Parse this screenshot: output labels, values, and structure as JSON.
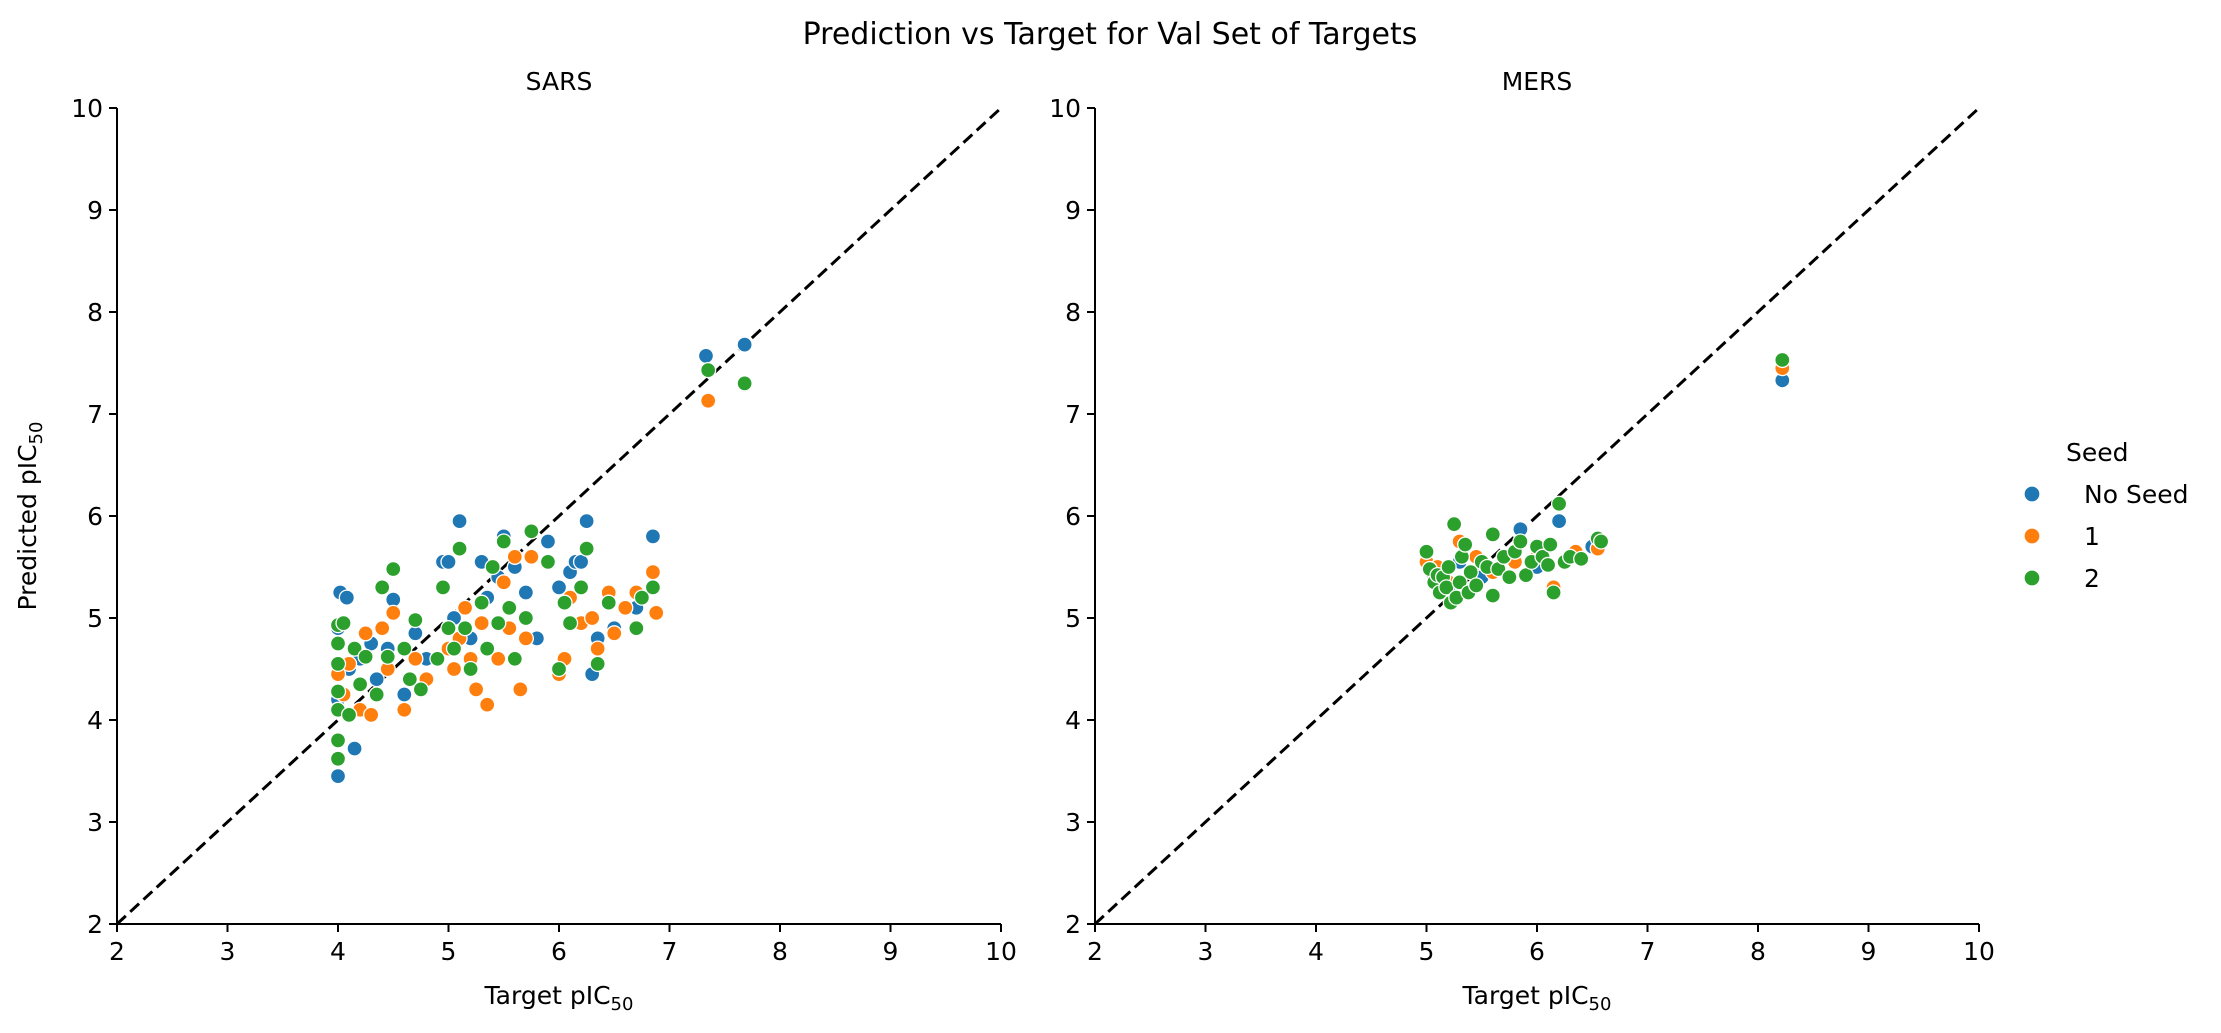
{
  "chart_data": {
    "title": "Prediction vs Target for Val Set of Targets",
    "type": "scatter",
    "xlabel_main": "Target pIC",
    "xlabel_sub": "50",
    "ylabel_main": "Predicted pIC",
    "ylabel_sub": "50",
    "xlim": [
      2,
      10
    ],
    "ylim": [
      2,
      10
    ],
    "ticks": [
      2,
      3,
      4,
      5,
      6,
      7,
      8,
      9,
      10
    ],
    "reference_line": "y = x (dashed)",
    "legend": {
      "title": "Seed",
      "position": "right",
      "entries": [
        {
          "label": "No Seed",
          "color": "#1f77b4"
        },
        {
          "label": "1",
          "color": "#ff7f0e"
        },
        {
          "label": "2",
          "color": "#2ca02c"
        }
      ]
    },
    "panels": [
      {
        "title": "SARS",
        "series": [
          {
            "name": "No Seed",
            "color": "#1f77b4",
            "points": [
              [
                4.0,
                3.45
              ],
              [
                4.0,
                4.9
              ],
              [
                4.0,
                4.2
              ],
              [
                4.02,
                5.25
              ],
              [
                4.08,
                5.2
              ],
              [
                4.15,
                3.72
              ],
              [
                4.1,
                4.5
              ],
              [
                4.2,
                4.6
              ],
              [
                4.3,
                4.75
              ],
              [
                4.35,
                4.4
              ],
              [
                4.45,
                4.7
              ],
              [
                4.5,
                5.18
              ],
              [
                4.6,
                4.25
              ],
              [
                4.7,
                4.85
              ],
              [
                4.8,
                4.6
              ],
              [
                4.95,
                5.55
              ],
              [
                5.0,
                5.55
              ],
              [
                5.05,
                5.0
              ],
              [
                5.1,
                5.95
              ],
              [
                5.2,
                4.8
              ],
              [
                5.3,
                5.55
              ],
              [
                5.35,
                5.2
              ],
              [
                5.45,
                5.4
              ],
              [
                5.5,
                5.8
              ],
              [
                5.6,
                5.5
              ],
              [
                5.7,
                5.25
              ],
              [
                5.8,
                4.8
              ],
              [
                5.9,
                5.75
              ],
              [
                6.0,
                5.3
              ],
              [
                6.1,
                5.45
              ],
              [
                6.15,
                5.55
              ],
              [
                6.2,
                5.55
              ],
              [
                6.25,
                5.95
              ],
              [
                6.3,
                4.45
              ],
              [
                6.35,
                4.8
              ],
              [
                6.5,
                4.9
              ],
              [
                6.7,
                5.1
              ],
              [
                6.85,
                5.8
              ],
              [
                7.33,
                7.57
              ],
              [
                7.68,
                7.68
              ]
            ]
          },
          {
            "name": "1",
            "color": "#ff7f0e",
            "points": [
              [
                4.0,
                4.45
              ],
              [
                4.05,
                4.25
              ],
              [
                4.1,
                4.55
              ],
              [
                4.2,
                4.1
              ],
              [
                4.25,
                4.85
              ],
              [
                4.3,
                4.05
              ],
              [
                4.4,
                4.9
              ],
              [
                4.45,
                4.5
              ],
              [
                4.5,
                5.05
              ],
              [
                4.6,
                4.1
              ],
              [
                4.7,
                4.6
              ],
              [
                4.8,
                4.4
              ],
              [
                5.0,
                4.7
              ],
              [
                5.05,
                4.5
              ],
              [
                5.1,
                4.8
              ],
              [
                5.15,
                5.1
              ],
              [
                5.2,
                4.6
              ],
              [
                5.25,
                4.3
              ],
              [
                5.3,
                4.95
              ],
              [
                5.35,
                4.15
              ],
              [
                5.45,
                4.6
              ],
              [
                5.5,
                5.35
              ],
              [
                5.55,
                4.9
              ],
              [
                5.6,
                5.6
              ],
              [
                5.65,
                4.3
              ],
              [
                5.7,
                4.8
              ],
              [
                5.75,
                5.6
              ],
              [
                6.0,
                4.45
              ],
              [
                6.05,
                4.6
              ],
              [
                6.1,
                5.2
              ],
              [
                6.2,
                4.95
              ],
              [
                6.3,
                5.0
              ],
              [
                6.35,
                4.7
              ],
              [
                6.45,
                5.25
              ],
              [
                6.5,
                4.85
              ],
              [
                6.6,
                5.1
              ],
              [
                6.7,
                5.25
              ],
              [
                6.85,
                5.45
              ],
              [
                6.88,
                5.05
              ],
              [
                7.35,
                7.13
              ]
            ]
          },
          {
            "name": "2",
            "color": "#2ca02c",
            "points": [
              [
                4.0,
                3.62
              ],
              [
                4.0,
                3.8
              ],
              [
                4.0,
                4.1
              ],
              [
                4.0,
                4.28
              ],
              [
                4.0,
                4.55
              ],
              [
                4.0,
                4.75
              ],
              [
                4.0,
                4.93
              ],
              [
                4.05,
                4.95
              ],
              [
                4.1,
                4.05
              ],
              [
                4.15,
                4.7
              ],
              [
                4.2,
                4.35
              ],
              [
                4.25,
                4.62
              ],
              [
                4.35,
                4.25
              ],
              [
                4.4,
                5.3
              ],
              [
                4.45,
                4.62
              ],
              [
                4.5,
                5.48
              ],
              [
                4.6,
                4.7
              ],
              [
                4.65,
                4.4
              ],
              [
                4.7,
                4.98
              ],
              [
                4.75,
                4.3
              ],
              [
                4.9,
                4.6
              ],
              [
                4.95,
                5.3
              ],
              [
                5.0,
                4.9
              ],
              [
                5.05,
                4.7
              ],
              [
                5.1,
                5.68
              ],
              [
                5.15,
                4.9
              ],
              [
                5.2,
                4.5
              ],
              [
                5.3,
                5.15
              ],
              [
                5.35,
                4.7
              ],
              [
                5.4,
                5.5
              ],
              [
                5.45,
                4.95
              ],
              [
                5.5,
                5.75
              ],
              [
                5.55,
                5.1
              ],
              [
                5.6,
                4.6
              ],
              [
                5.7,
                5.0
              ],
              [
                5.75,
                5.85
              ],
              [
                5.9,
                5.55
              ],
              [
                6.0,
                4.5
              ],
              [
                6.05,
                5.15
              ],
              [
                6.1,
                4.95
              ],
              [
                6.2,
                5.3
              ],
              [
                6.25,
                5.68
              ],
              [
                6.35,
                4.55
              ],
              [
                6.45,
                5.15
              ],
              [
                6.7,
                4.9
              ],
              [
                6.75,
                5.2
              ],
              [
                6.85,
                5.3
              ],
              [
                7.35,
                7.43
              ],
              [
                7.68,
                7.3
              ]
            ]
          }
        ]
      },
      {
        "title": "MERS",
        "series": [
          {
            "name": "No Seed",
            "color": "#1f77b4",
            "points": [
              [
                5.05,
                5.45
              ],
              [
                5.2,
                5.3
              ],
              [
                5.3,
                5.55
              ],
              [
                5.5,
                5.4
              ],
              [
                5.7,
                5.6
              ],
              [
                5.85,
                5.87
              ],
              [
                6.0,
                5.5
              ],
              [
                6.2,
                5.95
              ],
              [
                6.5,
                5.7
              ],
              [
                8.22,
                7.33
              ]
            ]
          },
          {
            "name": "1",
            "color": "#ff7f0e",
            "points": [
              [
                5.0,
                5.55
              ],
              [
                5.1,
                5.5
              ],
              [
                5.2,
                5.35
              ],
              [
                5.3,
                5.75
              ],
              [
                5.45,
                5.6
              ],
              [
                5.6,
                5.45
              ],
              [
                5.8,
                5.55
              ],
              [
                6.0,
                5.6
              ],
              [
                6.15,
                5.3
              ],
              [
                6.35,
                5.65
              ],
              [
                6.55,
                5.68
              ],
              [
                8.22,
                7.45
              ]
            ]
          },
          {
            "name": "2",
            "color": "#2ca02c",
            "points": [
              [
                5.0,
                5.65
              ],
              [
                5.03,
                5.48
              ],
              [
                5.07,
                5.35
              ],
              [
                5.1,
                5.42
              ],
              [
                5.12,
                5.25
              ],
              [
                5.15,
                5.4
              ],
              [
                5.18,
                5.3
              ],
              [
                5.2,
                5.5
              ],
              [
                5.22,
                5.15
              ],
              [
                5.25,
                5.92
              ],
              [
                5.27,
                5.2
              ],
              [
                5.3,
                5.35
              ],
              [
                5.32,
                5.6
              ],
              [
                5.35,
                5.72
              ],
              [
                5.38,
                5.25
              ],
              [
                5.4,
                5.45
              ],
              [
                5.45,
                5.32
              ],
              [
                5.5,
                5.55
              ],
              [
                5.55,
                5.5
              ],
              [
                5.6,
                5.82
              ],
              [
                5.6,
                5.22
              ],
              [
                5.65,
                5.48
              ],
              [
                5.7,
                5.6
              ],
              [
                5.75,
                5.4
              ],
              [
                5.8,
                5.65
              ],
              [
                5.85,
                5.75
              ],
              [
                5.9,
                5.42
              ],
              [
                5.95,
                5.55
              ],
              [
                6.0,
                5.7
              ],
              [
                6.05,
                5.6
              ],
              [
                6.1,
                5.52
              ],
              [
                6.12,
                5.72
              ],
              [
                6.15,
                5.25
              ],
              [
                6.2,
                6.12
              ],
              [
                6.25,
                5.55
              ],
              [
                6.3,
                5.6
              ],
              [
                6.4,
                5.58
              ],
              [
                6.55,
                5.78
              ],
              [
                6.58,
                5.75
              ],
              [
                8.22,
                7.53
              ]
            ]
          }
        ]
      }
    ]
  }
}
